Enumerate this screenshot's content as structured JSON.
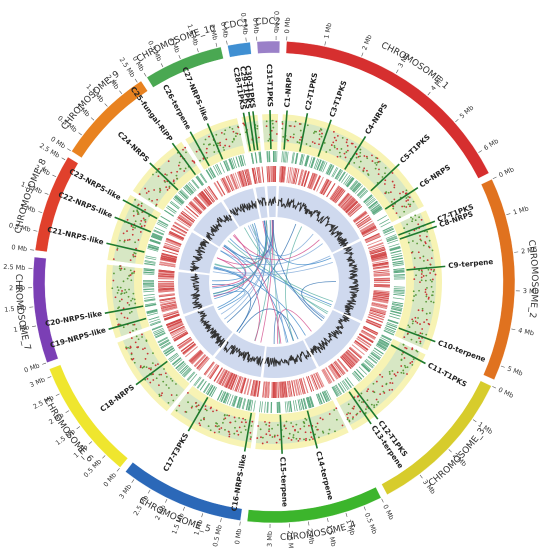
{
  "chromosomes": [
    {
      "name": "CHROMOSOME_1",
      "length_mb": 6.6,
      "color": "#d62f2f",
      "ticks": [
        "0 Mb",
        "1 Mb",
        "2 Mb",
        "3 Mb",
        "4 Mb",
        "5 Mb",
        "6 Mb"
      ],
      "tick_values": [
        0,
        1,
        2,
        3,
        4,
        5,
        6
      ]
    },
    {
      "name": "CHROMOSOME_2",
      "length_mb": 5.4,
      "color": "#e0721f",
      "ticks": [
        "0 Mb",
        "1 Mb",
        "2 Mb",
        "3 Mb",
        "4 Mb",
        "5 Mb"
      ],
      "tick_values": [
        0,
        1,
        2,
        3,
        4,
        5
      ]
    },
    {
      "name": "CHROMOSOME_3",
      "length_mb": 4.0,
      "color": "#d7cc2c",
      "ticks": [
        "0 Mb",
        "1 Mb",
        "2 Mb",
        "3 Mb"
      ],
      "tick_values": [
        0,
        1,
        2,
        3
      ]
    },
    {
      "name": "CHROMOSOME_4",
      "length_mb": 3.6,
      "color": "#3cb52c",
      "ticks": [
        "0 Mb",
        "0.5 Mb",
        "1 Mb",
        "1.5 Mb",
        "2 Mb",
        "2.5 Mb",
        "3 Mb"
      ],
      "tick_values": [
        0,
        0.5,
        1,
        1.5,
        2,
        2.5,
        3
      ]
    },
    {
      "name": "CHROMOSOME_5",
      "length_mb": 3.3,
      "color": "#2b68b8",
      "ticks": [
        "0 Mb",
        "0.5 Mb",
        "1 Mb",
        "1.5 Mb",
        "2 Mb",
        "2.5 Mb",
        "3 Mb"
      ],
      "tick_values": [
        0,
        0.5,
        1,
        1.5,
        2,
        2.5,
        3
      ]
    },
    {
      "name": "CHROMOSOME_6",
      "length_mb": 3.2,
      "color": "#efe62e",
      "ticks": [
        "0 Mb",
        "0.5 Mb",
        "1 Mb",
        "1.5 Mb",
        "2 Mb",
        "2.5 Mb",
        "3 Mb"
      ],
      "tick_values": [
        0,
        0.5,
        1,
        1.5,
        2,
        2.5,
        3
      ]
    },
    {
      "name": "CHROMOSOME_7",
      "length_mb": 2.8,
      "color": "#7b3fb5",
      "ticks": [
        "0 Mb",
        "1 Mb",
        "1.5 Mb",
        "2 Mb",
        "2.5 Mb"
      ],
      "tick_values": [
        0,
        1,
        1.5,
        2,
        2.5
      ]
    },
    {
      "name": "CHROMOSOME_8",
      "length_mb": 2.6,
      "color": "#e0402c",
      "ticks": [
        "0 Mb",
        "0.5 Mb",
        "1 Mb",
        "1.5 Mb",
        "2 Mb",
        "2.5 Mb"
      ],
      "tick_values": [
        0,
        0.5,
        1,
        1.5,
        2,
        2.5
      ]
    },
    {
      "name": "CHROMOSOME_9",
      "length_mb": 2.6,
      "color": "#e88220",
      "ticks": [
        "0 Mb",
        "0.5 Mb",
        "1 Mb",
        "1.5 Mb",
        "2 Mb",
        "2.5 Mb"
      ],
      "tick_values": [
        0,
        0.5,
        1,
        1.5,
        2,
        2.5
      ]
    },
    {
      "name": "CHROMOSOME_10",
      "length_mb": 2.1,
      "color": "#4aa852",
      "ticks": [
        "0 Mb",
        "0.5 Mb",
        "1 Mb",
        "1.5 Mb",
        "2 Mb"
      ],
      "tick_values": [
        0,
        0.5,
        1,
        1.5,
        2
      ]
    },
    {
      "name": "CDC1",
      "length_mb": 0.6,
      "color": "#3f8fd2",
      "ticks": [
        "0 Mb",
        "0.5 Mb"
      ],
      "tick_values": [
        0,
        0.5
      ]
    },
    {
      "name": "CDC2",
      "length_mb": 0.6,
      "color": "#9a80c8",
      "ticks": [
        "0 Mb",
        "0.5 Mb"
      ],
      "tick_values": [
        0,
        0.5
      ]
    }
  ],
  "clusters": [
    {
      "label": "C1-NRPS",
      "chrom": 0,
      "pos": 0.15
    },
    {
      "label": "C2-T1PKS",
      "chrom": 0,
      "pos": 0.9
    },
    {
      "label": "C3-T1PKS",
      "chrom": 0,
      "pos": 1.8
    },
    {
      "label": "C4-NRPS",
      "chrom": 0,
      "pos": 3.2
    },
    {
      "label": "C5-T1PKS",
      "chrom": 0,
      "pos": 4.8
    },
    {
      "label": "C6-NRPS",
      "chrom": 0,
      "pos": 5.9
    },
    {
      "label": "C7-T1PKS",
      "chrom": 1,
      "pos": 0.5
    },
    {
      "label": "C8-NRPS",
      "chrom": 1,
      "pos": 0.7
    },
    {
      "label": "C9-terpene",
      "chrom": 1,
      "pos": 2.2
    },
    {
      "label": "C10-terpene",
      "chrom": 1,
      "pos": 5.0
    },
    {
      "label": "C11-T1PKS",
      "chrom": 2,
      "pos": 0.3
    },
    {
      "label": "C12-T1PKS",
      "chrom": 2,
      "pos": 3.0
    },
    {
      "label": "C13-terpene",
      "chrom": 2,
      "pos": 3.3
    },
    {
      "label": "C14-terpene",
      "chrom": 3,
      "pos": 1.3
    },
    {
      "label": "C15-terpene",
      "chrom": 3,
      "pos": 2.6
    },
    {
      "label": "C16-NRPS-like",
      "chrom": 4,
      "pos": 0.2
    },
    {
      "label": "C17-T3PKS",
      "chrom": 4,
      "pos": 2.4
    },
    {
      "label": "C18-NRPS",
      "chrom": 5,
      "pos": 1.5
    },
    {
      "label": "C19-NRPS-like",
      "chrom": 6,
      "pos": 0.4
    },
    {
      "label": "C20-NRPS-like",
      "chrom": 6,
      "pos": 1.0
    },
    {
      "label": "C21-NRPS-like",
      "chrom": 7,
      "pos": 0.6
    },
    {
      "label": "C22-NRPS-like",
      "chrom": 7,
      "pos": 1.6
    },
    {
      "label": "C23-NRPS-like",
      "chrom": 7,
      "pos": 2.3
    },
    {
      "label": "C24-NRPS",
      "chrom": 8,
      "pos": 1.2
    },
    {
      "label": "C25-fungal-RiPP",
      "chrom": 8,
      "pos": 2.3
    },
    {
      "label": "C26-terpene",
      "chrom": 9,
      "pos": 0.3
    },
    {
      "label": "C27-NRPS-like",
      "chrom": 9,
      "pos": 1.0
    },
    {
      "label": "C28-T1PKS",
      "chrom": 10,
      "pos": 0.1
    },
    {
      "label": "C29-T1PKS",
      "chrom": 10,
      "pos": 0.3
    },
    {
      "label": "C30-T1PKS",
      "chrom": 10,
      "pos": 0.45
    },
    {
      "label": "C31-T1PKS",
      "chrom": 11,
      "pos": 0.3
    }
  ]
}
